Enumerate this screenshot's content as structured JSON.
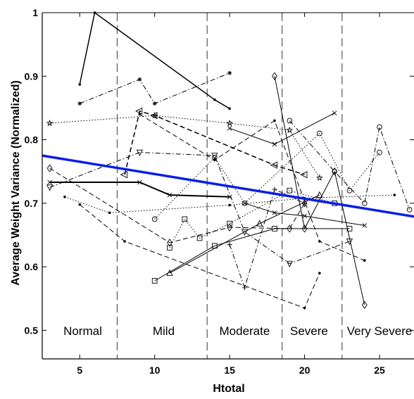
{
  "chart_data": {
    "type": "line",
    "title": "",
    "xlabel": "Htotal",
    "ylabel": "Average Weight Variance (Normalized)",
    "xlim": [
      2.5,
      27.3
    ],
    "ylim": [
      0.455,
      1.0
    ],
    "x_ticks": [
      5,
      10,
      15,
      20,
      25
    ],
    "x_tick_labels": [
      "5",
      "10",
      "15",
      "20",
      "25"
    ],
    "y_ticks": [
      0.5,
      0.6,
      0.7,
      0.8,
      0.9,
      1.0
    ],
    "y_tick_labels": [
      "0.5",
      "0.6",
      "0.7",
      "0.8",
      "0.9",
      "1"
    ],
    "grid": false,
    "severity_boundaries": [
      7.5,
      13.5,
      18.5,
      22.5
    ],
    "severity_bands": [
      {
        "label": "Normal",
        "x_center": 5.2
      },
      {
        "label": "Mild",
        "x_center": 10.6
      },
      {
        "label": "Moderate",
        "x_center": 16.0
      },
      {
        "label": "Severe",
        "x_center": 20.3
      },
      {
        "label": "Very Severe",
        "x_center": 25.0
      }
    ],
    "trend_line": {
      "x": [
        2.5,
        27.3
      ],
      "y": [
        0.775,
        0.679
      ],
      "color": "#0a1ee6"
    },
    "series": [
      {
        "style": "solid",
        "width": 1.5,
        "color": "#000000",
        "marker": "dot",
        "x": [
          5,
          6,
          14,
          15
        ],
        "y": [
          0.887,
          1.0,
          0.863,
          0.849
        ]
      },
      {
        "style": "solid",
        "width": 2.0,
        "color": "#000000",
        "marker": "x",
        "x": [
          3,
          9,
          11,
          15
        ],
        "y": [
          0.733,
          0.733,
          0.713,
          0.71
        ]
      },
      {
        "style": "dashed",
        "width": 1.5,
        "color": "#000000",
        "marker": "triangle-left",
        "x": [
          8,
          9,
          10,
          18,
          20
        ],
        "y": [
          0.745,
          0.845,
          0.838,
          0.76,
          0.745
        ]
      },
      {
        "style": "dashdot",
        "width": 1.0,
        "color": "#000000",
        "marker": "star",
        "x": [
          5,
          9,
          10,
          15
        ],
        "y": [
          0.857,
          0.895,
          0.857,
          0.905
        ]
      },
      {
        "style": "dotted",
        "width": 1.0,
        "color": "#000000",
        "marker": "pentagram",
        "x": [
          3,
          10,
          15,
          19,
          21
        ],
        "y": [
          0.826,
          0.838,
          0.826,
          0.815,
          0.74
        ]
      },
      {
        "style": "solid",
        "width": 1.0,
        "color": "#000000",
        "marker": "square",
        "x": [
          10,
          14,
          18,
          23
        ],
        "y": [
          0.578,
          0.633,
          0.66,
          0.66
        ]
      },
      {
        "style": "dashed",
        "width": 1.0,
        "color": "#000000",
        "marker": "diamond",
        "x": [
          3,
          11,
          15,
          19,
          20
        ],
        "y": [
          0.755,
          0.638,
          0.662,
          0.66,
          0.7
        ]
      },
      {
        "style": "dotted",
        "width": 1.0,
        "color": "#000000",
        "marker": "dot",
        "x": [
          4,
          7,
          15,
          20,
          26
        ],
        "y": [
          0.71,
          0.685,
          0.697,
          0.708,
          0.713
        ]
      },
      {
        "style": "dashdot",
        "width": 1.0,
        "color": "#000000",
        "marker": "triangle-down",
        "x": [
          3,
          9,
          14,
          16,
          19,
          23
        ],
        "y": [
          0.725,
          0.78,
          0.775,
          0.655,
          0.605,
          0.64
        ]
      },
      {
        "style": "solid",
        "width": 1.0,
        "color": "#000000",
        "marker": "x",
        "x": [
          15,
          18,
          22
        ],
        "y": [
          0.818,
          0.793,
          0.842
        ]
      },
      {
        "style": "dashed",
        "width": 1.0,
        "color": "#000000",
        "marker": "dot",
        "x": [
          5,
          8,
          20,
          21
        ],
        "y": [
          0.698,
          0.64,
          0.535,
          0.59
        ]
      },
      {
        "style": "solid",
        "width": 1.0,
        "color": "#000000",
        "marker": "triangle-up",
        "x": [
          11,
          17,
          21
        ],
        "y": [
          0.59,
          0.668,
          0.713
        ]
      },
      {
        "style": "dotted",
        "width": 1.0,
        "color": "#000000",
        "marker": "circle",
        "x": [
          10,
          14,
          16,
          21,
          23,
          25
        ],
        "y": [
          0.675,
          0.772,
          0.7,
          0.81,
          0.72,
          0.78
        ]
      },
      {
        "style": "dashdot",
        "width": 1.0,
        "color": "#000000",
        "marker": "plus",
        "x": [
          15,
          16,
          18,
          20
        ],
        "y": [
          0.635,
          0.567,
          0.722,
          0.7
        ]
      },
      {
        "style": "solid",
        "width": 1.0,
        "color": "#000000",
        "marker": "x",
        "x": [
          16,
          18,
          20,
          24
        ],
        "y": [
          0.7,
          0.685,
          0.68,
          0.665
        ]
      },
      {
        "style": "dotted",
        "width": 1.0,
        "color": "#000000",
        "marker": "square",
        "x": [
          11,
          12,
          13,
          15,
          19,
          22
        ],
        "y": [
          0.63,
          0.675,
          0.645,
          0.668,
          0.72,
          0.7
        ]
      },
      {
        "style": "dashed",
        "width": 1.0,
        "color": "#000000",
        "marker": "dot",
        "x": [
          9,
          14,
          18,
          21,
          24
        ],
        "y": [
          0.84,
          0.768,
          0.83,
          0.64,
          0.61
        ]
      },
      {
        "style": "solid",
        "width": 1.0,
        "color": "#000000",
        "marker": "diamond",
        "x": [
          18,
          20,
          22,
          24
        ],
        "y": [
          0.9,
          0.66,
          0.75,
          0.54
        ]
      },
      {
        "style": "dashdot",
        "width": 1.0,
        "color": "#000000",
        "marker": "circle",
        "x": [
          19,
          22,
          24,
          25,
          27
        ],
        "y": [
          0.83,
          0.75,
          0.7,
          0.82,
          0.69
        ]
      }
    ]
  }
}
